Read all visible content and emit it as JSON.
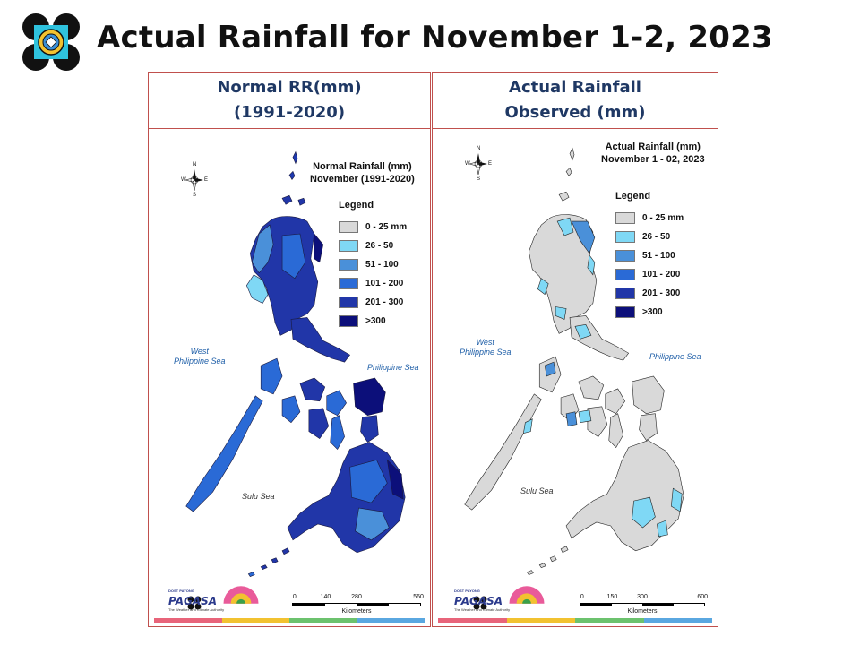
{
  "slide_title": "Actual Rainfall for November 1-2, 2023",
  "legend_colors": [
    "#d9d9d9",
    "#7fd8f5",
    "#4a90d9",
    "#2a6ad6",
    "#2136a8",
    "#0c0f7a"
  ],
  "left_panel": {
    "header_line1": "Normal RR(mm)",
    "header_line2": "(1991-2020)",
    "map_title_line1": "Normal Rainfall (mm)",
    "map_title_line2": "November (1991-2020)",
    "legend_title": "Legend",
    "legend_items": [
      "0 - 25 mm",
      "26 - 50",
      "51 - 100",
      "101 - 200",
      "201 - 300",
      ">300"
    ],
    "sea_west_line1": "West",
    "sea_west_line2": "Philippine Sea",
    "sea_east": "Philippine Sea",
    "sea_south": "Sulu Sea",
    "scale_ticks": [
      "0",
      "140",
      "280",
      "560"
    ],
    "scale_unit": "Kilometers",
    "compass": {
      "n": "N",
      "s": "S",
      "e": "E",
      "w": "W"
    },
    "logo_word": "PAGASA",
    "logo_top": "DOST PAYONG",
    "logo_tagline": "The Weather and Climate Authority"
  },
  "right_panel": {
    "header_line1": "Actual Rainfall",
    "header_line2": "Observed (mm)",
    "map_title_line1": "Actual Rainfall (mm)",
    "map_title_line2": "November 1 - 02, 2023",
    "legend_title": "Legend",
    "legend_items": [
      "0 - 25 mm",
      "26 - 50",
      "51 - 100",
      "101 - 200",
      "201 - 300",
      ">300"
    ],
    "sea_west_line1": "West",
    "sea_west_line2": "Philippine Sea",
    "sea_east": "Philippine Sea",
    "sea_south": "Sulu Sea",
    "scale_ticks": [
      "0",
      "150",
      "300",
      "600"
    ],
    "scale_unit": "Kilometers",
    "compass": {
      "n": "N",
      "s": "S",
      "e": "E",
      "w": "W"
    },
    "logo_word": "PAGASA",
    "logo_top": "DOST PAYONG",
    "logo_tagline": "The Weather and Climate Authority"
  }
}
